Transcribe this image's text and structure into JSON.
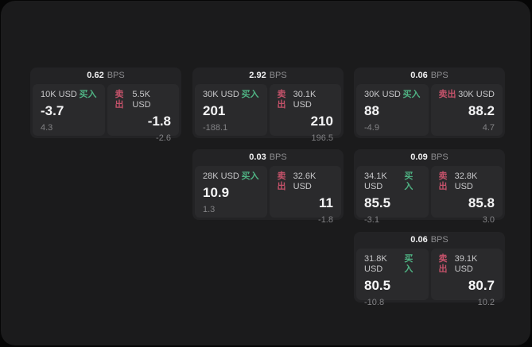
{
  "labels": {
    "bps_unit": "BPS",
    "buy": "买入",
    "sell": "卖出"
  },
  "colors": {
    "outer_background": "#060606",
    "panel": "#1b1b1c",
    "card": "#232325",
    "subpanel": "#2a2a2c",
    "buy_green": "#4fb283",
    "sell_red": "#c4526a",
    "primary_text": "#f5f5f6",
    "secondary_text": "#c7c7c9",
    "muted_text": "#828285"
  },
  "cards": [
    {
      "bps": "0.62",
      "buy": {
        "amount": "10K USD",
        "price": "-3.7",
        "delta": "4.3"
      },
      "sell": {
        "amount": "5.5K USD",
        "price": "-1.8",
        "delta": "-2.6"
      }
    },
    {
      "bps": "2.92",
      "buy": {
        "amount": "30K USD",
        "price": "201",
        "delta": "-188.1"
      },
      "sell": {
        "amount": "30.1K USD",
        "price": "210",
        "delta": "196.5"
      }
    },
    {
      "bps": "0.06",
      "buy": {
        "amount": "30K USD",
        "price": "88",
        "delta": "-4.9"
      },
      "sell": {
        "amount": "30K USD",
        "price": "88.2",
        "delta": "4.7"
      }
    },
    {
      "bps": "0.03",
      "buy": {
        "amount": "28K USD",
        "price": "10.9",
        "delta": "1.3"
      },
      "sell": {
        "amount": "32.6K USD",
        "price": "11",
        "delta": "-1.8"
      }
    },
    {
      "bps": "0.09",
      "buy": {
        "amount": "34.1K USD",
        "price": "85.5",
        "delta": "-3.1"
      },
      "sell": {
        "amount": "32.8K USD",
        "price": "85.8",
        "delta": "3.0"
      }
    },
    {
      "bps": "0.06",
      "buy": {
        "amount": "31.8K USD",
        "price": "80.5",
        "delta": "-10.8"
      },
      "sell": {
        "amount": "39.1K USD",
        "price": "80.7",
        "delta": "10.2"
      }
    }
  ]
}
